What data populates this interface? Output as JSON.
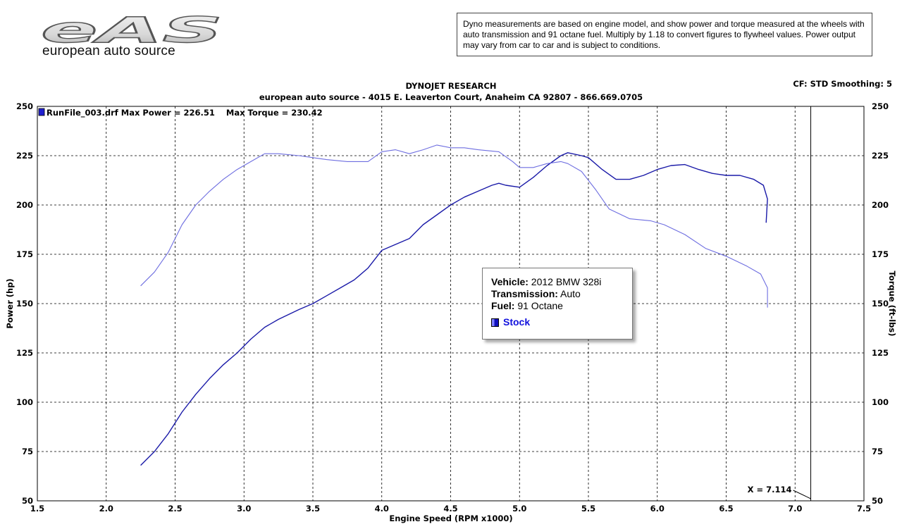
{
  "logo": {
    "letters": "eAS",
    "tagline": "european auto source"
  },
  "notice": "Dyno measurements are based on engine model, and show power and torque measured at the wheels with auto transmission and 91 octane fuel. Multiply by 1.18 to convert figures to flywheel values. Power output may vary from car to car and is subject to conditions.",
  "header": {
    "title": "DYNOJET RESEARCH",
    "subtitle": "european auto source - 4015 E. Leaverton Court, Anaheim  CA 92807 - 866.669.0705",
    "cf_info": "CF: STD  Smoothing: 5"
  },
  "run_label": "RunFile_003.drf Max Power = 226.51    Max Torque = 230.42",
  "cursor_label": "X = 7.114",
  "info_box": {
    "vehicle_key": "Vehicle:",
    "vehicle_value": " 2012 BMW 328i",
    "transmission_key": "Transmission:",
    "transmission_value": " Auto",
    "fuel_key": "Fuel:",
    "fuel_value": " 91 Octane",
    "legend_label": "Stock"
  },
  "colors": {
    "power": "#1a1aa8",
    "torque": "#6e6ee0",
    "swatch": "#2020d0"
  },
  "chart_data": {
    "type": "line",
    "xlabel": "Engine Speed (RPM x1000)",
    "ylabel_left": "Power (hp)",
    "ylabel_right": "Torque (ft-lbs)",
    "xlim": [
      1.5,
      7.5
    ],
    "ylim": [
      50,
      250
    ],
    "x_ticks": [
      "1.5",
      "2.0",
      "2.5",
      "3.0",
      "3.5",
      "4.0",
      "4.5",
      "5.0",
      "5.5",
      "6.0",
      "6.5",
      "7.0",
      "7.5"
    ],
    "y_ticks": [
      "50",
      "75",
      "100",
      "125",
      "150",
      "175",
      "200",
      "225",
      "250"
    ],
    "grid": true,
    "cursor_x": 7.114,
    "series": [
      {
        "name": "Power",
        "x": [
          2.25,
          2.35,
          2.45,
          2.55,
          2.65,
          2.75,
          2.85,
          2.95,
          3.05,
          3.15,
          3.25,
          3.4,
          3.5,
          3.6,
          3.7,
          3.8,
          3.9,
          4.0,
          4.1,
          4.2,
          4.3,
          4.4,
          4.5,
          4.6,
          4.7,
          4.8,
          4.85,
          4.9,
          5.0,
          5.1,
          5.2,
          5.3,
          5.35,
          5.45,
          5.5,
          5.6,
          5.7,
          5.8,
          5.9,
          6.0,
          6.1,
          6.2,
          6.3,
          6.4,
          6.5,
          6.6,
          6.7,
          6.77,
          6.8,
          6.79
        ],
        "values": [
          68,
          75,
          84,
          95,
          104,
          112,
          119,
          125,
          132,
          138,
          142,
          147,
          150,
          154,
          158,
          162,
          168,
          177,
          180,
          183,
          190,
          195,
          200,
          204,
          207,
          210,
          211,
          210,
          209,
          214,
          220,
          225,
          226.5,
          225,
          224,
          218,
          213,
          213,
          215,
          218,
          220,
          220.5,
          218,
          216,
          215,
          215,
          213,
          210,
          203,
          191
        ]
      },
      {
        "name": "Torque",
        "x": [
          2.25,
          2.35,
          2.45,
          2.55,
          2.65,
          2.75,
          2.85,
          2.95,
          3.05,
          3.15,
          3.25,
          3.4,
          3.5,
          3.6,
          3.75,
          3.9,
          4.0,
          4.1,
          4.2,
          4.3,
          4.4,
          4.5,
          4.6,
          4.7,
          4.85,
          4.95,
          5.0,
          5.1,
          5.2,
          5.3,
          5.35,
          5.45,
          5.55,
          5.65,
          5.8,
          5.95,
          6.05,
          6.2,
          6.35,
          6.5,
          6.65,
          6.75,
          6.8,
          6.8
        ],
        "values": [
          159,
          166,
          176,
          190,
          200,
          207,
          213,
          218,
          222,
          226,
          226,
          225,
          224,
          223,
          222,
          222,
          227,
          228,
          226,
          228,
          230.4,
          229,
          229,
          228,
          227,
          222,
          219,
          219,
          221,
          222,
          221,
          217,
          208,
          198,
          193,
          192,
          190,
          185,
          178,
          174,
          169,
          165,
          158,
          148
        ]
      }
    ]
  }
}
